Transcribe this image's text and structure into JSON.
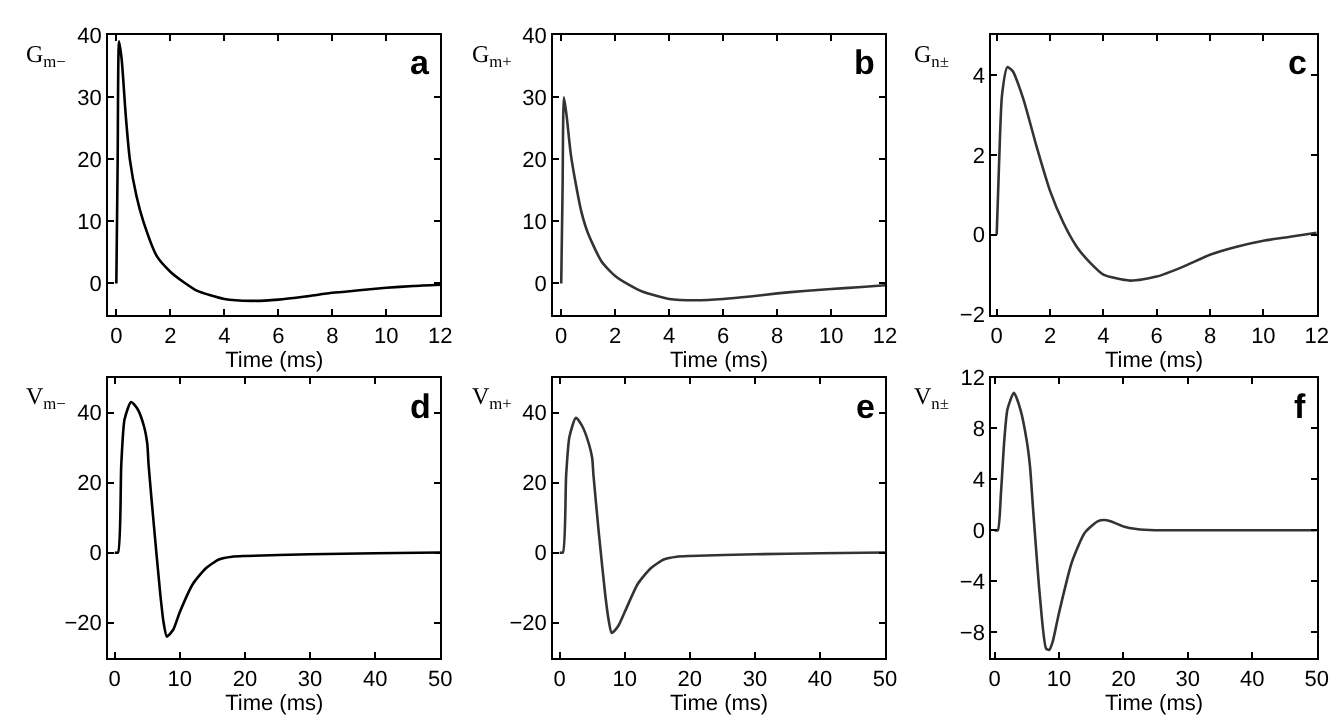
{
  "chart_data": [
    {
      "type": "line",
      "ylabel": "G$_{m−}$",
      "xlabel": "Time (ms)",
      "annotations": [
        "a"
      ],
      "xlim": [
        -0.3,
        12
      ],
      "xticks": [
        0,
        2,
        4,
        6,
        8,
        10,
        12
      ],
      "ylim": [
        -5,
        40
      ],
      "yticks": [
        0,
        10,
        20,
        30,
        40
      ],
      "series": [
        {
          "color": "#000000",
          "x": [
            0,
            0.05,
            0.1,
            0.2,
            0.35,
            0.5,
            0.75,
            1,
            1.5,
            2,
            2.5,
            3,
            4,
            5,
            6,
            7,
            8,
            9,
            10,
            11,
            12
          ],
          "values": [
            0,
            20,
            39,
            36,
            27,
            20,
            14,
            10,
            4.4,
            1.9,
            0.2,
            -1.2,
            -2.5,
            -2.8,
            -2.6,
            -2.1,
            -1.5,
            -1.1,
            -0.7,
            -0.4,
            -0.2
          ]
        }
      ]
    },
    {
      "type": "line",
      "ylabel": "G$_{m+}$",
      "xlabel": "Time (ms)",
      "annotations": [
        "b"
      ],
      "xlim": [
        -0.3,
        12
      ],
      "xticks": [
        0,
        2,
        4,
        6,
        8,
        10,
        12
      ],
      "ylim": [
        -5,
        40
      ],
      "yticks": [
        0,
        10,
        20,
        30,
        40
      ],
      "series": [
        {
          "color": "#333333",
          "x": [
            0,
            0.05,
            0.1,
            0.2,
            0.35,
            0.5,
            0.75,
            1,
            1.5,
            2,
            2.5,
            3,
            4,
            5,
            6,
            7,
            8,
            9,
            10,
            11,
            12
          ],
          "values": [
            0,
            15,
            30,
            27,
            21,
            17,
            11.5,
            8,
            3.5,
            1.2,
            -0.2,
            -1.3,
            -2.5,
            -2.7,
            -2.5,
            -2.1,
            -1.6,
            -1.2,
            -0.9,
            -0.6,
            -0.3
          ]
        }
      ]
    },
    {
      "type": "line",
      "ylabel": "G$_{n±}$",
      "xlabel": "Time (ms)",
      "annotations": [
        "c"
      ],
      "xlim": [
        -0.2,
        12
      ],
      "xticks": [
        0,
        2,
        4,
        6,
        8,
        10,
        12
      ],
      "ylim": [
        -2,
        5
      ],
      "yticks": [
        -2,
        0,
        2,
        4
      ],
      "series": [
        {
          "color": "#333333",
          "x": [
            0,
            0.1,
            0.2,
            0.4,
            0.6,
            1,
            1.5,
            2,
            2.5,
            3,
            3.5,
            4,
            5,
            6,
            7,
            8,
            9,
            10,
            11,
            12
          ],
          "values": [
            0,
            2,
            3.5,
            4.2,
            4.1,
            3.4,
            2.2,
            1.1,
            0.3,
            -0.3,
            -0.7,
            -1.0,
            -1.15,
            -1.05,
            -0.8,
            -0.5,
            -0.3,
            -0.15,
            -0.05,
            0.05
          ]
        }
      ]
    },
    {
      "type": "line",
      "ylabel": "V$_{m−}$",
      "xlabel": "Time (ms)",
      "annotations": [
        "d"
      ],
      "xlim": [
        -1,
        50
      ],
      "xticks": [
        0,
        10,
        20,
        30,
        40,
        50
      ],
      "ylim": [
        -30,
        50
      ],
      "yticks": [
        -20,
        0,
        20,
        40
      ],
      "series": [
        {
          "color": "#000000",
          "x": [
            0,
            0.5,
            1,
            1.5,
            2.5,
            3.5,
            4.5,
            5,
            5.2,
            6,
            7,
            7.5,
            8,
            9,
            10,
            12,
            14,
            16,
            18,
            20,
            30,
            40,
            50
          ],
          "values": [
            0,
            0,
            25,
            38,
            43,
            41,
            36,
            31,
            25,
            8,
            -12,
            -20,
            -24,
            -22,
            -17,
            -9,
            -4.5,
            -2,
            -1.2,
            -1,
            -0.5,
            -0.2,
            0
          ]
        }
      ]
    },
    {
      "type": "line",
      "ylabel": "V$_{m+}$",
      "xlabel": "Time (ms)",
      "annotations": [
        "e"
      ],
      "xlim": [
        -1,
        50
      ],
      "xticks": [
        0,
        10,
        20,
        30,
        40,
        50
      ],
      "ylim": [
        -30,
        50
      ],
      "yticks": [
        -20,
        0,
        20,
        40
      ],
      "series": [
        {
          "color": "#333333",
          "x": [
            0,
            0.5,
            1,
            1.5,
            2.5,
            3.5,
            4.5,
            5,
            5.2,
            6,
            7,
            7.5,
            8,
            9,
            10,
            12,
            14,
            16,
            18,
            20,
            30,
            40,
            50
          ],
          "values": [
            0,
            0,
            22,
            33,
            38.5,
            36,
            31,
            27,
            22,
            6,
            -12,
            -19,
            -23,
            -21,
            -17,
            -9,
            -4.5,
            -2,
            -1.2,
            -1,
            -0.5,
            -0.2,
            0
          ]
        }
      ]
    },
    {
      "type": "line",
      "ylabel": "V$_{n±}$",
      "xlabel": "Time (ms)",
      "annotations": [
        "f"
      ],
      "xlim": [
        -0.5,
        50
      ],
      "xticks": [
        0,
        10,
        20,
        30,
        40,
        50
      ],
      "ylim": [
        -10,
        12
      ],
      "yticks": [
        -8,
        -4,
        0,
        4,
        8,
        12
      ],
      "series": [
        {
          "color": "#333333",
          "x": [
            0,
            0.5,
            1,
            1.5,
            2,
            3,
            4,
            5,
            5.5,
            6,
            7,
            8,
            8.5,
            9,
            10,
            12,
            14,
            16,
            17,
            18,
            20,
            22,
            25,
            30,
            50
          ],
          "values": [
            0,
            0,
            3,
            7,
            9.5,
            10.8,
            9.5,
            7,
            5,
            1.5,
            -5,
            -9.3,
            -9.4,
            -8.8,
            -6.5,
            -2.5,
            -0.2,
            0.7,
            0.8,
            0.7,
            0.3,
            0.1,
            0,
            0,
            0
          ]
        }
      ]
    }
  ]
}
